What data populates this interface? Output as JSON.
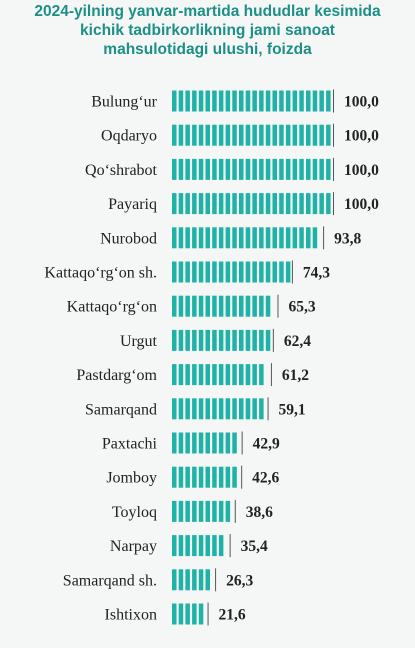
{
  "chart_data": {
    "type": "bar",
    "orientation": "horizontal",
    "title_lines": [
      "2024-yilning yanvar-martida hududlar kesimida",
      "kichik tadbirkorlikning jami sanoat",
      "mahsulotidagi ulushi, foizda"
    ],
    "categories": [
      "Bulung‘ur",
      "Oqdaryo",
      "Qo‘shrabot",
      "Payariq",
      "Nurobod",
      "Kattaqo‘rg‘on sh.",
      "Kattaqo‘rg‘on",
      "Urgut",
      "Pastdarg‘om",
      "Samarqand",
      "Paxtachi",
      "Jomboy",
      "Toyloq",
      "Narpay",
      "Samarqand sh.",
      "Ishtixon"
    ],
    "values": [
      100.0,
      100.0,
      100.0,
      100.0,
      93.8,
      74.3,
      65.3,
      62.4,
      61.2,
      59.1,
      42.9,
      42.6,
      38.6,
      35.4,
      26.3,
      21.6
    ],
    "value_labels": [
      "100,0",
      "100,0",
      "100,0",
      "100,0",
      "93,8",
      "74,3",
      "65,3",
      "62,4",
      "61,2",
      "59,1",
      "42,9",
      "42,6",
      "38,6",
      "35,4",
      "26,3",
      "21,6"
    ],
    "xlim": [
      0,
      100
    ],
    "grid": false,
    "legend": "none",
    "colors": {
      "bar": "#1fb2a6",
      "title": "#1d8f86",
      "text": "#222222",
      "background": "#f4f7f6"
    }
  }
}
